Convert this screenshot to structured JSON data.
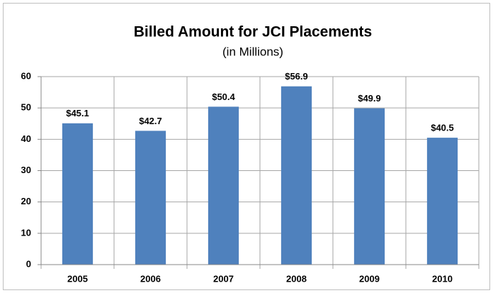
{
  "chart_data": {
    "type": "bar",
    "title": "Billed Amount for JCI Placements",
    "subtitle": "(in Millions)",
    "categories": [
      "2005",
      "2006",
      "2007",
      "2008",
      "2009",
      "2010"
    ],
    "values": [
      45.1,
      42.7,
      50.4,
      56.9,
      49.9,
      40.5
    ],
    "value_labels": [
      "$45.1",
      "$42.7",
      "$50.4",
      "$56.9",
      "$49.9",
      "$40.5"
    ],
    "color": "#4f81bd",
    "ylim": [
      0,
      60
    ],
    "yticks": [
      0,
      10,
      20,
      30,
      40,
      50,
      60
    ],
    "grid": true
  }
}
